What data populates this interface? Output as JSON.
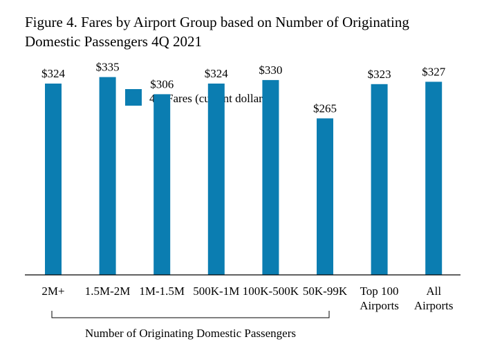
{
  "chart_data": {
    "type": "bar",
    "title": "Figure 4. Fares by Airport Group based on Number of Originating Domestic Passengers 4Q 2021",
    "categories": [
      "2M+",
      "1.5M-2M",
      "1M-1.5M",
      "500K-1M",
      "100K-500K",
      "50K-99K",
      "Top 100 Airports",
      "All Airports"
    ],
    "category_lines": [
      [
        "2M+"
      ],
      [
        "1.5M-2M"
      ],
      [
        "1M-1.5M"
      ],
      [
        "500K-1M"
      ],
      [
        "100K-500K"
      ],
      [
        "50K-99K"
      ],
      [
        "Top 100",
        "Airports"
      ],
      [
        "All",
        "Airports"
      ]
    ],
    "series": [
      {
        "name": "4Q Fares (current dollars)",
        "values": [
          324,
          335,
          306,
          324,
          330,
          265,
          323,
          327
        ],
        "value_labels": [
          "$324",
          "$335",
          "$306",
          "$324",
          "$330",
          "$265",
          "$323",
          "$327"
        ]
      }
    ],
    "group_bracket": {
      "label": "Number of Originating Domestic Passengers",
      "first_category": 0,
      "last_category": 5
    },
    "ylim": [
      0,
      400
    ],
    "grid": false,
    "legend": "top-center",
    "colors": {
      "bar": "#0b7db1",
      "axis": "#000000"
    }
  }
}
